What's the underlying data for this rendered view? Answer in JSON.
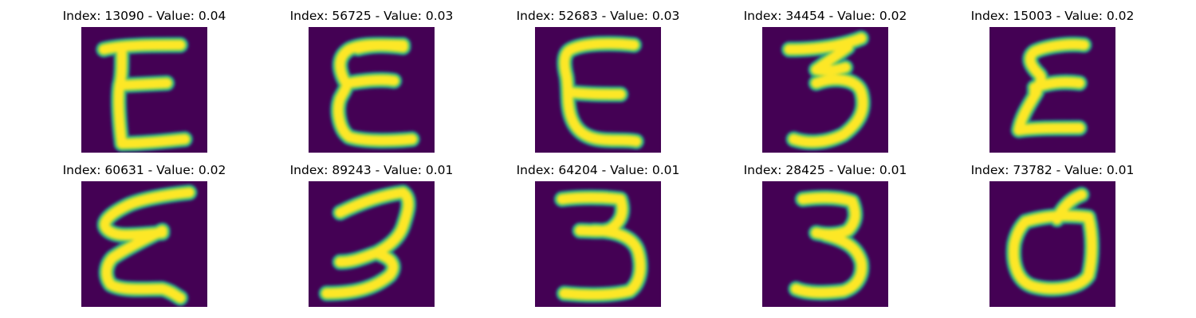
{
  "colors": {
    "background": "#440154",
    "stroke_dark": "#21918c",
    "stroke_mid": "#5ec962",
    "stroke_core": "#fde725"
  },
  "panels": [
    {
      "index": "13090",
      "value": "0.04",
      "title": "Index: 13090 - Value: 0.04",
      "glyph": "E"
    },
    {
      "index": "56725",
      "value": "0.03",
      "title": "Index: 56725 - Value: 0.03",
      "glyph": "E"
    },
    {
      "index": "52683",
      "value": "0.03",
      "title": "Index: 52683 - Value: 0.03",
      "glyph": "E"
    },
    {
      "index": "34454",
      "value": "0.02",
      "title": "Index: 34454 - Value: 0.02",
      "glyph": "3"
    },
    {
      "index": "15003",
      "value": "0.02",
      "title": "Index: 15003 - Value: 0.02",
      "glyph": "E"
    },
    {
      "index": "60631",
      "value": "0.02",
      "title": "Index: 60631 - Value: 0.02",
      "glyph": "E"
    },
    {
      "index": "89243",
      "value": "0.01",
      "title": "Index: 89243 - Value: 0.01",
      "glyph": "3"
    },
    {
      "index": "64204",
      "value": "0.01",
      "title": "Index: 64204 - Value: 0.01",
      "glyph": "3"
    },
    {
      "index": "28425",
      "value": "0.01",
      "title": "Index: 28425 - Value: 0.01",
      "glyph": "3"
    },
    {
      "index": "73782",
      "value": "0.01",
      "title": "Index: 73782 - Value: 0.01",
      "glyph": "d"
    }
  ]
}
